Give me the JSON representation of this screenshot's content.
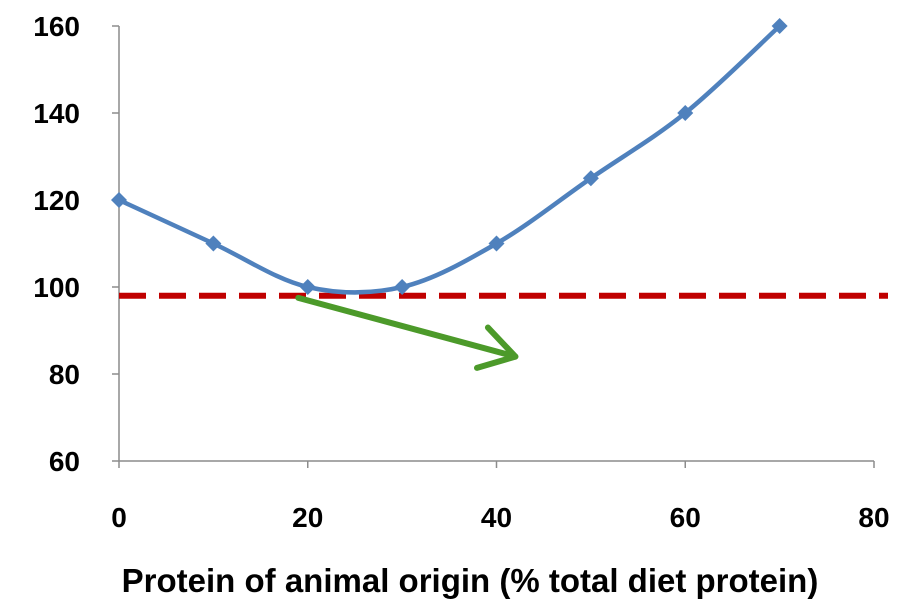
{
  "chart_data": {
    "type": "line",
    "title": "",
    "xlabel": "Protein of animal origin (% total diet protein)",
    "ylabel": "",
    "xlim": [
      0,
      80
    ],
    "ylim": [
      60,
      160
    ],
    "x_ticks": [
      0,
      20,
      40,
      60,
      80
    ],
    "y_ticks": [
      60,
      80,
      100,
      120,
      140,
      160
    ],
    "grid": false,
    "legend": "none",
    "series": [
      {
        "x": [
          0,
          10,
          20,
          30,
          40,
          50,
          60,
          70
        ],
        "values": [
          120,
          110,
          100,
          100,
          110,
          125,
          140,
          160
        ],
        "color": "#4F81BD",
        "marker": "diamond",
        "smooth": true
      }
    ],
    "reference_line": {
      "y": 98,
      "color": "#C00000",
      "style": "dashed"
    },
    "arrow": {
      "from": [
        19,
        97.5
      ],
      "to": [
        42,
        84
      ],
      "color": "#4C9A2A"
    }
  }
}
